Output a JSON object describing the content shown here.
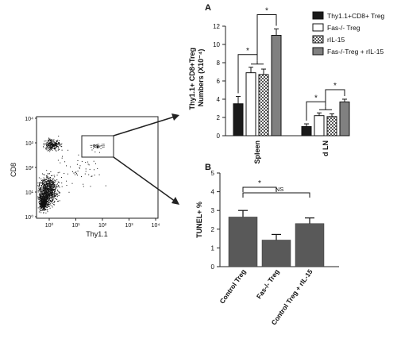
{
  "flow": {
    "ylabel": "CD8",
    "xlabel": "Thy1.1",
    "y_ticks": [
      "10⁴",
      "10³",
      "10²",
      "10¹",
      "10⁰"
    ],
    "x_ticks": [
      "10⁰",
      "10¹",
      "10²",
      "10³",
      "10⁴"
    ]
  },
  "chart_data": [
    {
      "panel": "A",
      "type": "bar",
      "ylabel": "Thy1.1+ CD8+Treg Numbers (X10⁻⁴)",
      "categories": [
        "Spleen",
        "d LN"
      ],
      "ylim": [
        0,
        12
      ],
      "y_ticks": [
        "0",
        "2",
        "4",
        "6",
        "8",
        "10",
        "12"
      ],
      "series": [
        {
          "name": "Thy1.1+CD8+ Treg",
          "values": [
            3.5,
            1.0
          ],
          "errors": [
            0.8,
            0.3
          ],
          "color": "#1a1a1a",
          "pattern": "solid"
        },
        {
          "name": "Fas-/- Treg",
          "values": [
            6.9,
            2.2
          ],
          "errors": [
            0.6,
            0.3
          ],
          "color": "#ffffff",
          "pattern": "open"
        },
        {
          "name": "rIL-15",
          "values": [
            6.7,
            2.1
          ],
          "errors": [
            0.6,
            0.3
          ],
          "color": "#cfcfcf",
          "pattern": "checker"
        },
        {
          "name": "Fas-/-Treg + rIL-15",
          "values": [
            11.0,
            3.7
          ],
          "errors": [
            0.7,
            0.3
          ],
          "color": "#808080",
          "pattern": "solid"
        }
      ],
      "annotations": [
        "*",
        "*",
        "*",
        "*"
      ]
    },
    {
      "panel": "B",
      "type": "bar",
      "ylabel": "TUNEL+ %",
      "categories": [
        "Control Treg",
        "Fas-/- Treg",
        "Control  Treg + rIL-15"
      ],
      "ylim": [
        0,
        5
      ],
      "y_ticks": [
        "0",
        "1",
        "2",
        "3",
        "4",
        "5"
      ],
      "series": [
        {
          "values": [
            2.65,
            1.42,
            2.3
          ],
          "errors": [
            0.35,
            0.3,
            0.3
          ],
          "color": "#595959"
        }
      ],
      "annotations": [
        "*",
        "NS"
      ]
    }
  ]
}
